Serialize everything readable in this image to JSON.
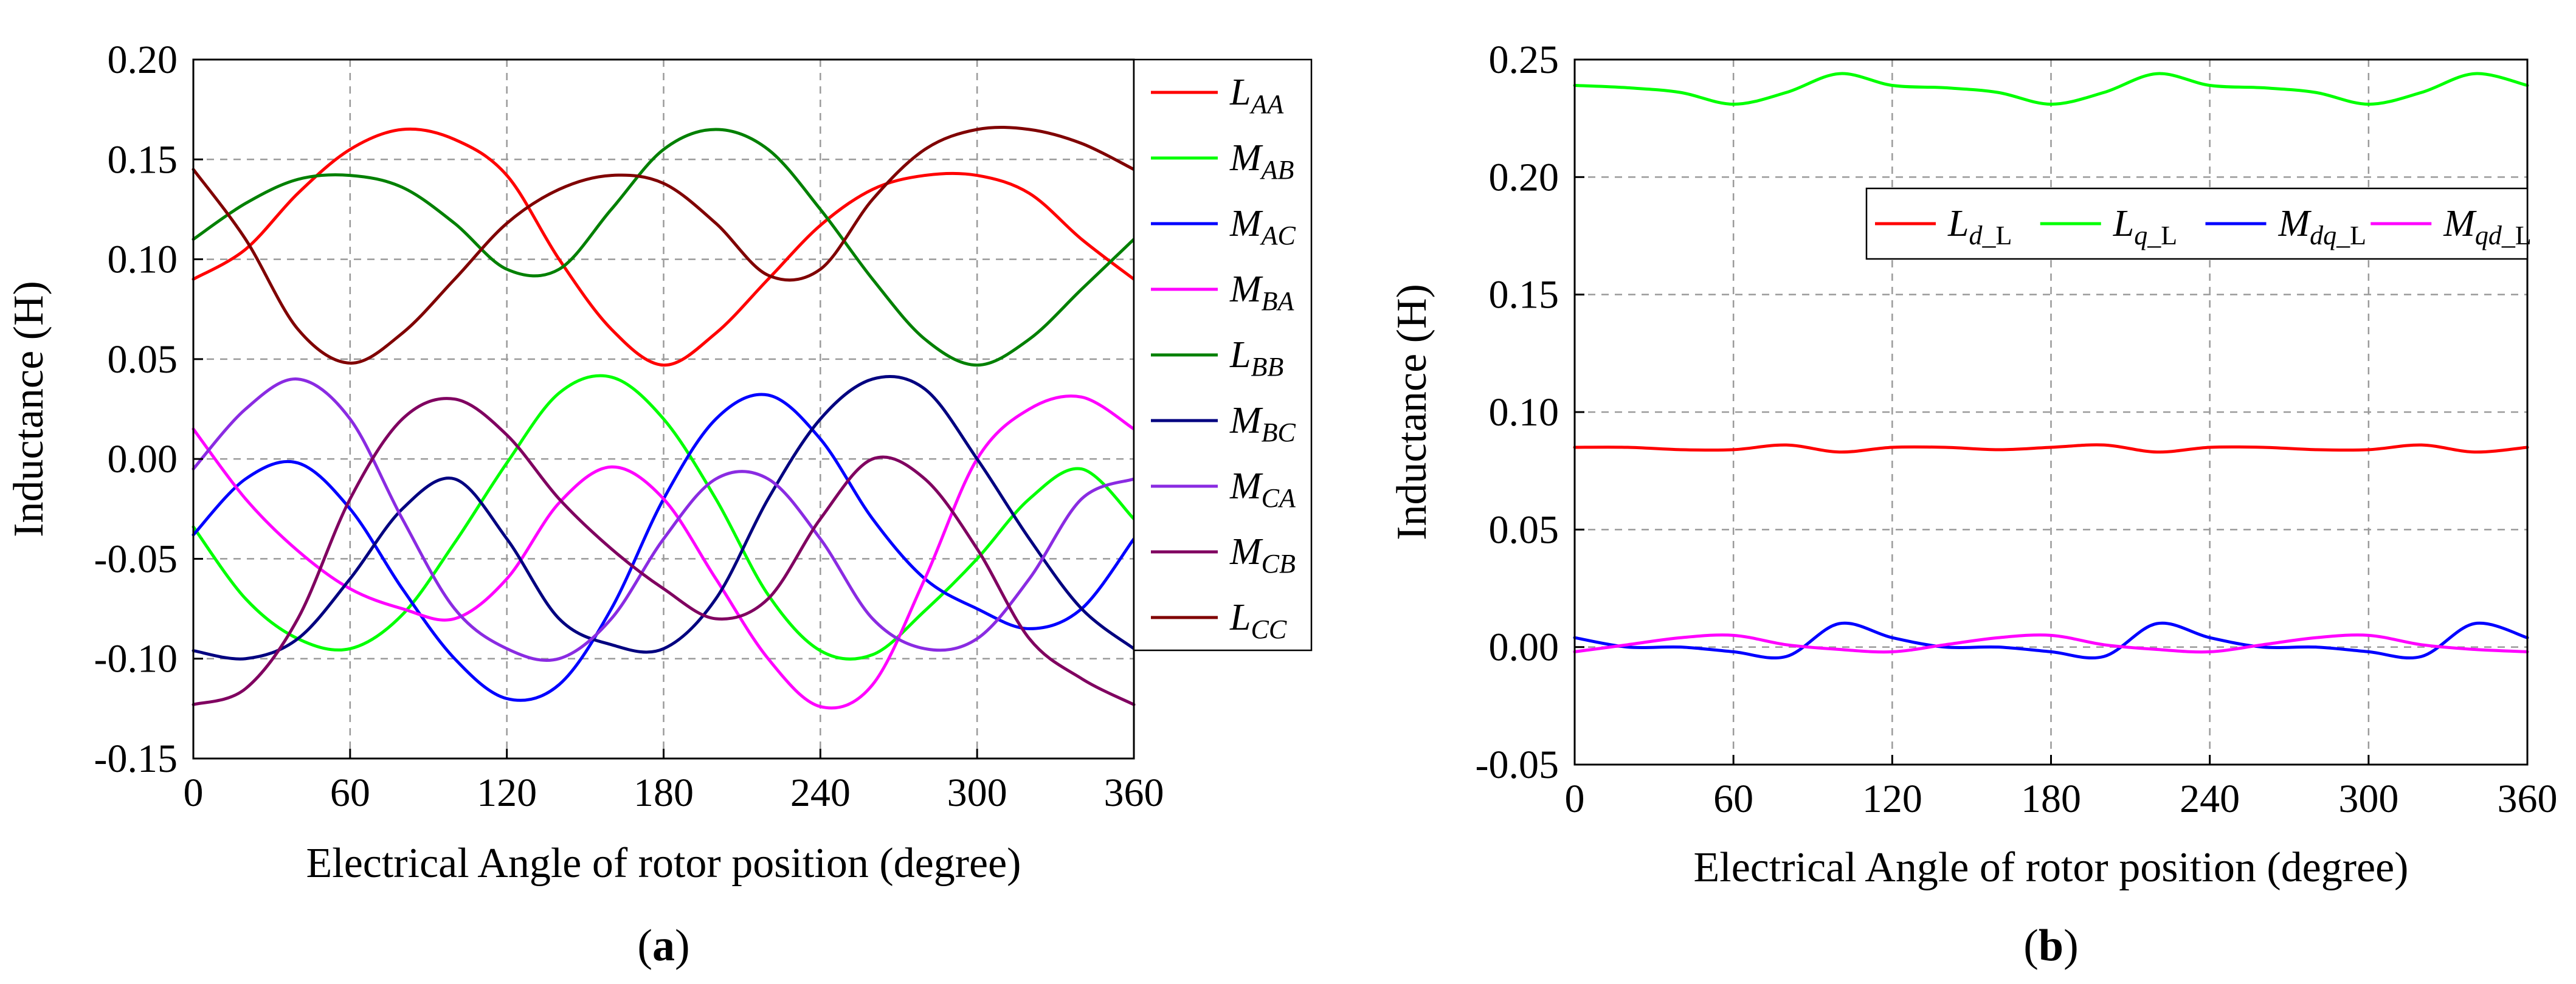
{
  "chart_data": [
    {
      "type": "line",
      "caption": "(a)",
      "caption_label": "a",
      "xlabel": "Electrical Angle of rotor position (degree)",
      "ylabel": "Inductance (H)",
      "xlim": [
        0,
        360
      ],
      "ylim": [
        -0.15,
        0.2
      ],
      "xticks": [
        0,
        60,
        120,
        180,
        240,
        300,
        360
      ],
      "xtick_labels": [
        "0",
        "60",
        "120",
        "180",
        "240",
        "300",
        "360"
      ],
      "yticks": [
        -0.15,
        -0.1,
        -0.05,
        0.0,
        0.05,
        0.1,
        0.15,
        0.2
      ],
      "ytick_labels": [
        "-0.15",
        "-0.10",
        "-0.05",
        "0.00",
        "0.05",
        "0.10",
        "0.15",
        "0.20"
      ],
      "grid": true,
      "legend_position": "right-outside",
      "x": [
        0,
        20,
        40,
        60,
        80,
        100,
        120,
        140,
        160,
        180,
        200,
        220,
        240,
        260,
        280,
        300,
        320,
        340,
        360
      ],
      "series": [
        {
          "name": "L_AA",
          "main": "L",
          "sub": "AA",
          "color": "#ff0000",
          "values": [
            0.09,
            0.105,
            0.133,
            0.155,
            0.165,
            0.16,
            0.142,
            0.1,
            0.065,
            0.047,
            0.063,
            0.09,
            0.117,
            0.135,
            0.142,
            0.142,
            0.133,
            0.11,
            0.09
          ]
        },
        {
          "name": "M_AB",
          "main": "M",
          "sub": "AB",
          "color": "#00ff00",
          "values": [
            -0.034,
            -0.07,
            -0.09,
            -0.095,
            -0.078,
            -0.042,
            -0.002,
            0.033,
            0.041,
            0.02,
            -0.02,
            -0.068,
            -0.096,
            -0.098,
            -0.076,
            -0.05,
            -0.02,
            -0.005,
            -0.03
          ]
        },
        {
          "name": "M_AC",
          "main": "M",
          "sub": "AC",
          "color": "#0000ff",
          "values": [
            -0.038,
            -0.01,
            -0.002,
            -0.025,
            -0.065,
            -0.1,
            -0.12,
            -0.113,
            -0.075,
            -0.02,
            0.02,
            0.032,
            0.01,
            -0.03,
            -0.06,
            -0.075,
            -0.085,
            -0.075,
            -0.04
          ]
        },
        {
          "name": "M_BA",
          "main": "M",
          "sub": "BA",
          "color": "#ff00ff",
          "values": [
            0.015,
            -0.02,
            -0.046,
            -0.065,
            -0.075,
            -0.08,
            -0.06,
            -0.022,
            -0.004,
            -0.02,
            -0.06,
            -0.1,
            -0.124,
            -0.113,
            -0.06,
            0.0,
            0.025,
            0.031,
            0.015
          ]
        },
        {
          "name": "L_BB",
          "main": "L",
          "sub": "BB",
          "color": "#008000",
          "values": [
            0.11,
            0.128,
            0.14,
            0.142,
            0.136,
            0.118,
            0.095,
            0.095,
            0.125,
            0.155,
            0.165,
            0.155,
            0.125,
            0.09,
            0.06,
            0.047,
            0.06,
            0.085,
            0.11
          ]
        },
        {
          "name": "M_BC",
          "main": "M",
          "sub": "BC",
          "color": "#000080",
          "values": [
            -0.096,
            -0.1,
            -0.09,
            -0.06,
            -0.025,
            -0.01,
            -0.04,
            -0.08,
            -0.093,
            -0.095,
            -0.07,
            -0.02,
            0.02,
            0.04,
            0.035,
            0.0,
            -0.04,
            -0.075,
            -0.095
          ]
        },
        {
          "name": "M_CA",
          "main": "M",
          "sub": "CA",
          "color": "#8a2be2",
          "values": [
            -0.005,
            0.025,
            0.04,
            0.02,
            -0.03,
            -0.075,
            -0.095,
            -0.1,
            -0.08,
            -0.04,
            -0.01,
            -0.01,
            -0.04,
            -0.08,
            -0.095,
            -0.09,
            -0.06,
            -0.02,
            -0.01
          ]
        },
        {
          "name": "M_CB",
          "main": "M",
          "sub": "CB",
          "color": "#800060",
          "values": [
            -0.123,
            -0.115,
            -0.08,
            -0.02,
            0.02,
            0.03,
            0.012,
            -0.02,
            -0.045,
            -0.065,
            -0.08,
            -0.07,
            -0.03,
            0.0,
            -0.01,
            -0.045,
            -0.09,
            -0.11,
            -0.123
          ]
        },
        {
          "name": "L_CC",
          "main": "L",
          "sub": "CC",
          "color": "#800000",
          "values": [
            0.145,
            0.11,
            0.065,
            0.048,
            0.063,
            0.09,
            0.118,
            0.135,
            0.142,
            0.138,
            0.118,
            0.092,
            0.095,
            0.13,
            0.155,
            0.165,
            0.165,
            0.158,
            0.145
          ]
        }
      ]
    },
    {
      "type": "line",
      "caption": "(b)",
      "caption_label": "b",
      "xlabel": "Electrical Angle of rotor position (degree)",
      "ylabel": "Inductance (H)",
      "xlim": [
        0,
        360
      ],
      "ylim": [
        -0.05,
        0.25
      ],
      "xticks": [
        0,
        60,
        120,
        180,
        240,
        300,
        360
      ],
      "xtick_labels": [
        "0",
        "60",
        "120",
        "180",
        "240",
        "300",
        "360"
      ],
      "yticks": [
        -0.05,
        0.0,
        0.05,
        0.1,
        0.15,
        0.2,
        0.25
      ],
      "ytick_labels": [
        "-0.05",
        "0.00",
        "0.05",
        "0.10",
        "0.15",
        "0.20",
        "0.25"
      ],
      "grid": true,
      "legend_position": "upper-right-inside",
      "x": [
        0,
        20,
        40,
        60,
        80,
        100,
        120,
        140,
        160,
        180,
        200,
        220,
        240,
        260,
        280,
        300,
        320,
        340,
        360
      ],
      "series": [
        {
          "name": "L_d_L",
          "main": "L",
          "sub": "d_",
          "subtail": "L",
          "color": "#ff0000",
          "values": [
            0.085,
            0.085,
            0.084,
            0.084,
            0.086,
            0.083,
            0.085,
            0.085,
            0.084,
            0.085,
            0.086,
            0.083,
            0.085,
            0.085,
            0.084,
            0.084,
            0.086,
            0.083,
            0.085
          ]
        },
        {
          "name": "L_q_L",
          "main": "L",
          "sub": "q_",
          "subtail": "L",
          "color": "#00ff00",
          "values": [
            0.239,
            0.238,
            0.236,
            0.231,
            0.236,
            0.244,
            0.239,
            0.238,
            0.236,
            0.231,
            0.236,
            0.244,
            0.239,
            0.238,
            0.236,
            0.231,
            0.236,
            0.244,
            0.239
          ]
        },
        {
          "name": "M_dq_L",
          "main": "M",
          "sub": "dq_",
          "subtail": "L",
          "color": "#0000ff",
          "values": [
            0.004,
            0.0,
            0.0,
            -0.002,
            -0.004,
            0.01,
            0.004,
            0.0,
            0.0,
            -0.002,
            -0.004,
            0.01,
            0.004,
            0.0,
            0.0,
            -0.002,
            -0.004,
            0.01,
            0.004
          ]
        },
        {
          "name": "M_qd_L",
          "main": "M",
          "sub": "qd_",
          "subtail": "L",
          "color": "#ff00ff",
          "values": [
            -0.002,
            0.001,
            0.004,
            0.005,
            0.001,
            -0.001,
            -0.002,
            0.001,
            0.004,
            0.005,
            0.001,
            -0.001,
            -0.002,
            0.001,
            0.004,
            0.005,
            0.001,
            -0.001,
            -0.002
          ]
        }
      ]
    }
  ]
}
